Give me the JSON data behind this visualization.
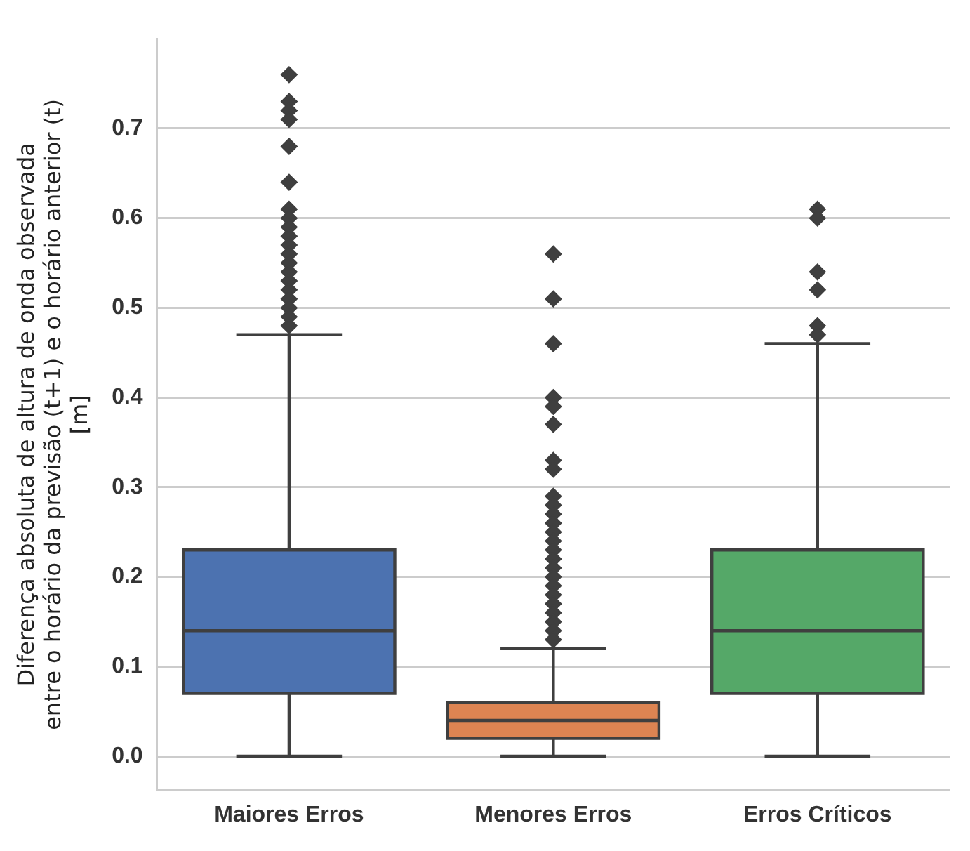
{
  "chart_data": {
    "type": "box",
    "ylabel": "Diferença absoluta de altura de onda observada\nentre o horário da previsão (t+1) e o horário anterior (t)\n[m]",
    "categories": [
      "Maiores Erros",
      "Menores Erros",
      "Erros Críticos"
    ],
    "colors": [
      "#4c72b0",
      "#dd8452",
      "#55a868"
    ],
    "boxes": [
      {
        "low": 0,
        "q1": 0.07,
        "median": 0.14,
        "q3": 0.23,
        "high": 0.47,
        "outliers": [
          0.76,
          0.73,
          0.72,
          0.71,
          0.68,
          0.64,
          0.61,
          0.6,
          0.59,
          0.58,
          0.57,
          0.56,
          0.55,
          0.54,
          0.53,
          0.52,
          0.51,
          0.5,
          0.49,
          0.48
        ]
      },
      {
        "low": 0,
        "q1": 0.02,
        "median": 0.04,
        "q3": 0.06,
        "high": 0.12,
        "outliers": [
          0.56,
          0.51,
          0.46,
          0.4,
          0.39,
          0.37,
          0.33,
          0.32,
          0.29,
          0.28,
          0.27,
          0.26,
          0.25,
          0.24,
          0.23,
          0.22,
          0.21,
          0.2,
          0.19,
          0.18,
          0.17,
          0.16,
          0.15,
          0.14,
          0.13
        ]
      },
      {
        "low": 0,
        "q1": 0.07,
        "median": 0.14,
        "q3": 0.23,
        "high": 0.46,
        "outliers": [
          0.61,
          0.6,
          0.54,
          0.52,
          0.48,
          0.47
        ]
      }
    ],
    "ylim": [
      -0.038,
      0.8
    ],
    "yticks": [
      {
        "value": 0,
        "label": "0.0"
      },
      0.1,
      0.2,
      0.3,
      0.4,
      0.5,
      0.6,
      0.7
    ],
    "grid": "y",
    "marker": "diamond",
    "legend": false
  }
}
